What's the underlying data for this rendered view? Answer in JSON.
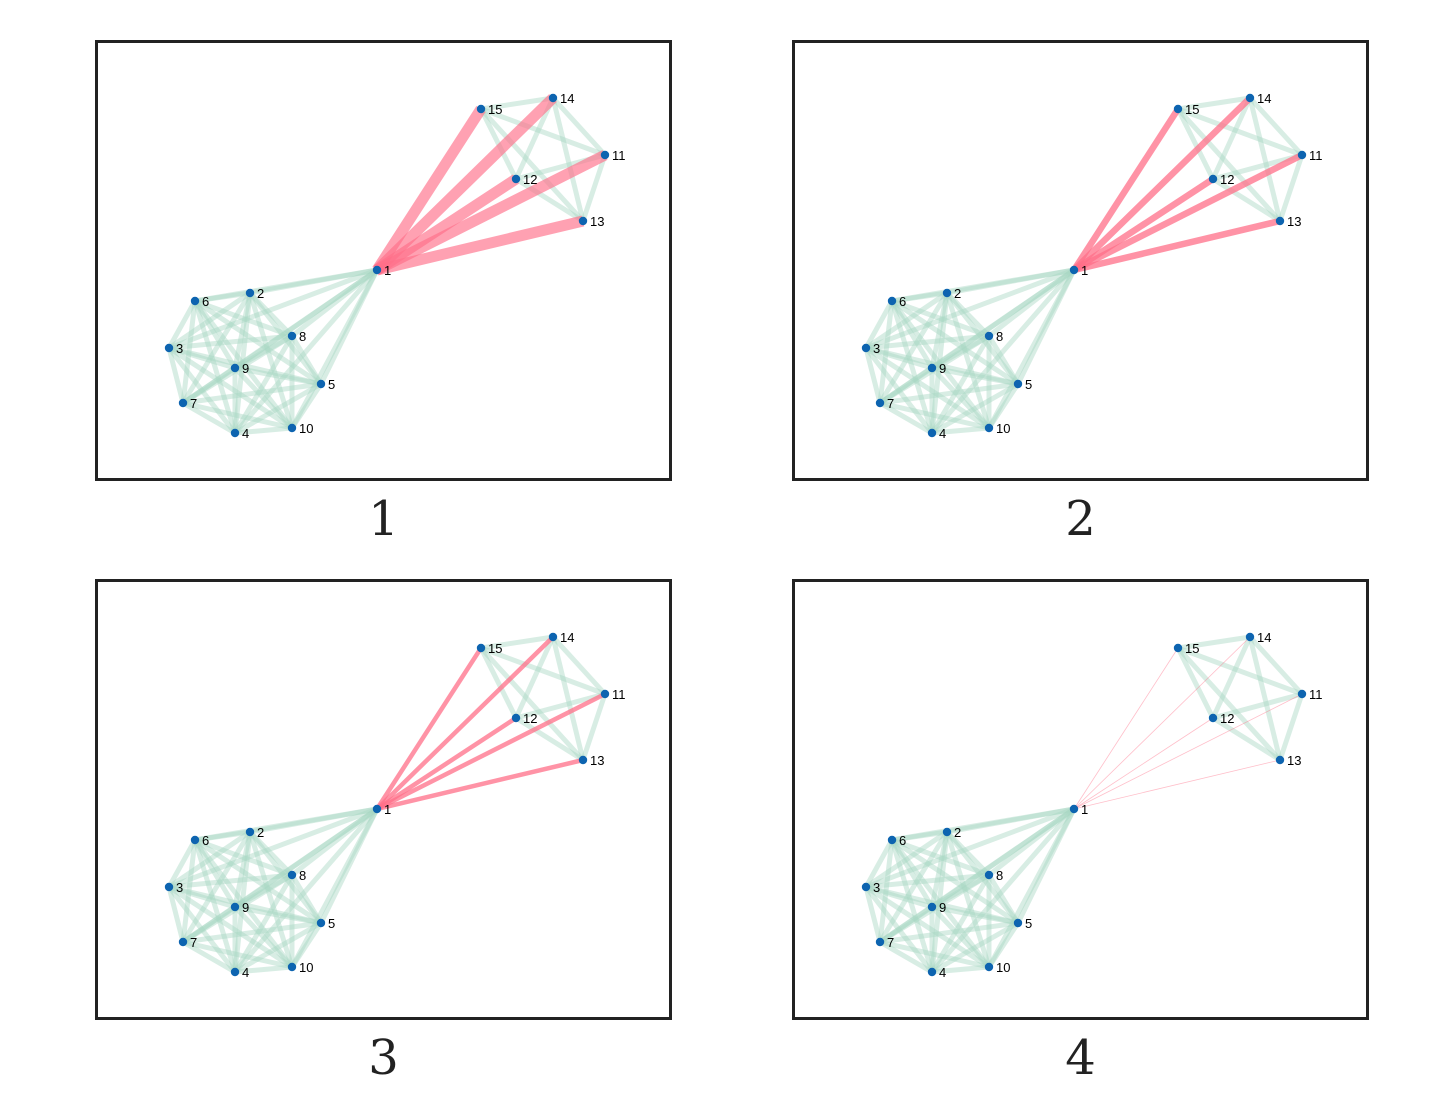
{
  "colors": {
    "node": "#0d64b0",
    "intra_edge": "#a8d8c4",
    "bridge_edge": "#ff6f88",
    "frame": "#222222",
    "label": "#000000"
  },
  "nodes": [
    "1",
    "2",
    "3",
    "4",
    "5",
    "6",
    "7",
    "8",
    "9",
    "10",
    "11",
    "12",
    "13",
    "14",
    "15"
  ],
  "panels": [
    {
      "caption": "1",
      "bridge_width": 11,
      "bridge_opacity": 0.65
    },
    {
      "caption": "2",
      "bridge_width": 6.5,
      "bridge_opacity": 0.75
    },
    {
      "caption": "3",
      "bridge_width": 4.5,
      "bridge_opacity": 0.75
    },
    {
      "caption": "4",
      "bridge_width": 0.8,
      "bridge_opacity": 0.45
    }
  ]
}
